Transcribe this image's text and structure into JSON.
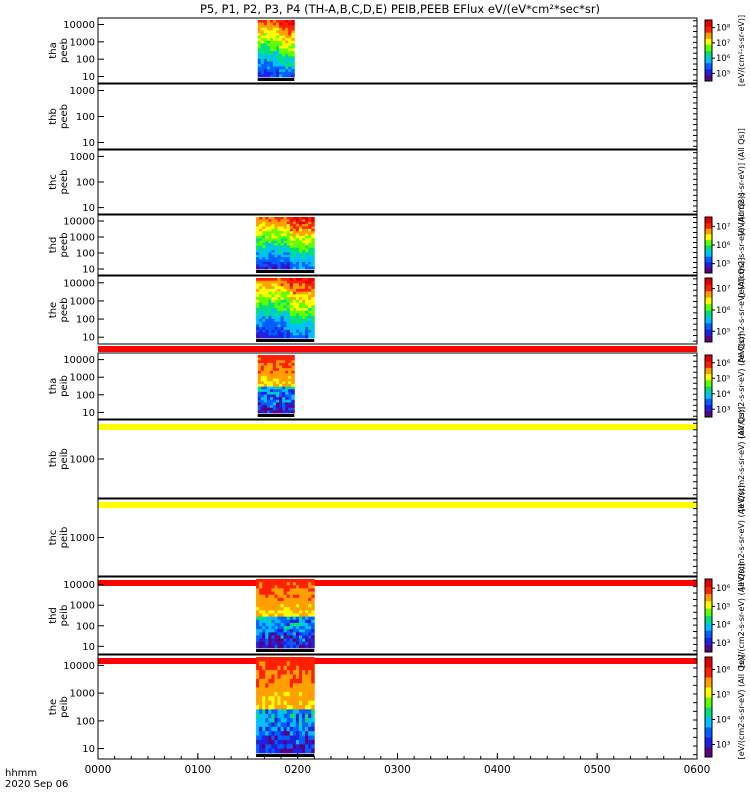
{
  "title": "P5, P1, P2, P3, P4 (TH-A,B,C,D,E) PEIB,PEEB EFlux eV/(eV*cm²*sec*sr)",
  "colors": {
    "spectrum": [
      "#5a0080",
      "#2020e0",
      "#0060ff",
      "#00c0ff",
      "#00e080",
      "#60ff00",
      "#ffff00",
      "#ffa000",
      "#ff2000",
      "#e00000"
    ],
    "flag_red": "#ff0000",
    "flag_yellow": "#ffff00",
    "axis": "#000000"
  },
  "chart_data": {
    "type": "heatmap",
    "x_axis": {
      "ticks": [
        "0000",
        "0100",
        "0200",
        "0300",
        "0400",
        "0500",
        "0600"
      ],
      "tick_values_hhmm": [
        0,
        100,
        200,
        300,
        400,
        500,
        600
      ],
      "label_line1": "hhmm",
      "label_line2": "2020 Sep 06",
      "range_hhmm": [
        "0000",
        "0600"
      ]
    },
    "panels": [
      {
        "id": "tha-peeb",
        "line1": "tha",
        "line2": "peeb",
        "yticks": [
          "10",
          "100",
          "1000",
          "10000"
        ],
        "has_data": true,
        "data_range_hhmm": [
          "0136",
          "0158"
        ],
        "colorbar": {
          "ticks": [
            "10⁵",
            "10⁶",
            "10⁷",
            "10⁸"
          ],
          "label": "[eV/(cm²-s-sr-eV)]"
        },
        "flag": "none"
      },
      {
        "id": "thb-peeb",
        "line1": "thb",
        "line2": "peeb",
        "yticks": [
          "10",
          "100",
          "1000"
        ],
        "has_data": false,
        "flag": "none"
      },
      {
        "id": "thc-peeb",
        "line1": "thc",
        "line2": "peeb",
        "yticks": [
          "10",
          "100",
          "1000"
        ],
        "has_data": false,
        "flag": "none",
        "side_label": "[eV/(cm2-s-sr-eV)] (All Qs)]"
      },
      {
        "id": "thd-peeb",
        "line1": "thd",
        "line2": "peeb",
        "yticks": [
          "10",
          "100",
          "1000",
          "10000"
        ],
        "has_data": true,
        "data_range_hhmm": [
          "0135",
          "0210"
        ],
        "colorbar": {
          "ticks": [
            "10⁵",
            "10⁶",
            "10⁷"
          ],
          "label": "[eV/(cm2-s-sr-eV) (All Qs)]"
        },
        "flag": "none"
      },
      {
        "id": "the-peeb",
        "line1": "the",
        "line2": "peeb",
        "yticks": [
          "10",
          "100",
          "1000",
          "10000"
        ],
        "has_data": true,
        "data_range_hhmm": [
          "0135",
          "0210"
        ],
        "colorbar": {
          "ticks": [
            "10⁵",
            "10⁶",
            "10⁷"
          ],
          "label": "[eV/(cm2-s-sr-eV) (All Qs)]"
        },
        "flag": "red"
      },
      {
        "id": "tha-peib",
        "line1": "tha",
        "line2": "peib",
        "yticks": [
          "10",
          "100",
          "1000",
          "10000"
        ],
        "has_data": true,
        "data_range_hhmm": [
          "0136",
          "0158"
        ],
        "colorbar": {
          "ticks": [
            "10³",
            "10⁴",
            "10⁵",
            "10⁶"
          ],
          "label": "[eV/(cm2-s-sr-eV) (All Qs)]"
        },
        "flag": "none"
      },
      {
        "id": "thb-peib",
        "line1": "thb",
        "line2": "peib",
        "yticks": [
          "1000"
        ],
        "has_data": false,
        "flag": "yellow",
        "side_label": "[eV/(cm2-s-sr-eV) (All Qs)]"
      },
      {
        "id": "thc-peib",
        "line1": "thc",
        "line2": "peib",
        "yticks": [
          "1000"
        ],
        "has_data": false,
        "flag": "yellow",
        "side_label": "[eV/(cm2-s-sr-eV) (All Qs)]"
      },
      {
        "id": "thd-peib",
        "line1": "thd",
        "line2": "peib",
        "yticks": [
          "10",
          "100",
          "1000",
          "10000"
        ],
        "has_data": true,
        "data_range_hhmm": [
          "0135",
          "0210"
        ],
        "colorbar": {
          "ticks": [
            "10³",
            "10⁴",
            "10⁵",
            "10⁶"
          ],
          "label": "[eV/(cm2-s-sr-eV) (All Qs)]"
        },
        "flag": "red"
      },
      {
        "id": "the-peib",
        "line1": "the",
        "line2": "peib",
        "yticks": [
          "10",
          "100",
          "1000",
          "10000"
        ],
        "has_data": true,
        "data_range_hhmm": [
          "0135",
          "0210"
        ],
        "colorbar": {
          "ticks": [
            "10³",
            "10⁴",
            "10⁵",
            "10⁶"
          ],
          "label": "[eV/(cm2-s-sr-eV) (All Qs)]"
        },
        "flag": "red"
      }
    ]
  }
}
